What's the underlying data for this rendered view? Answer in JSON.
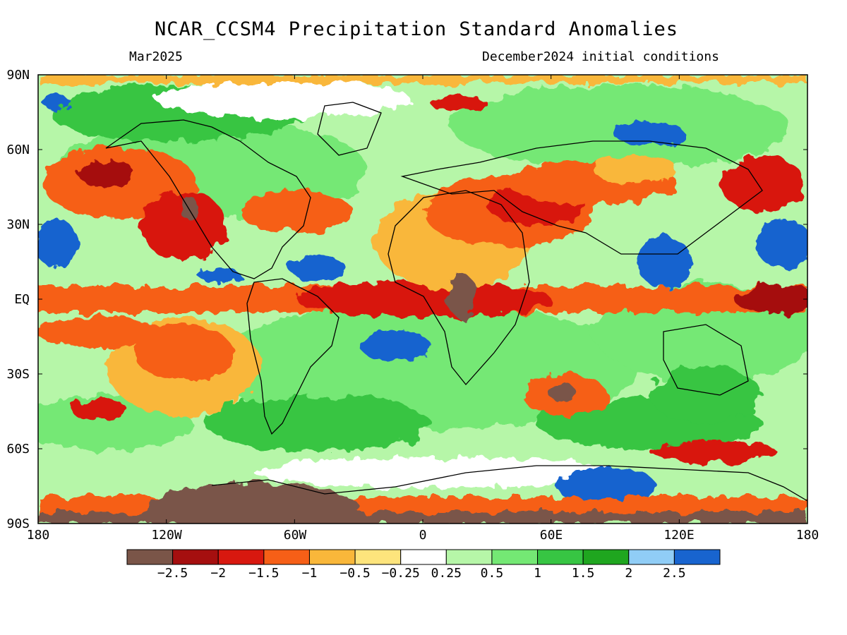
{
  "header": {
    "title": "NCAR_CCSM4 Precipitation Standard Anomalies",
    "valid_month": "Mar2025",
    "initial_conditions": "December2024 initial conditions"
  },
  "axes": {
    "lat_labels": [
      "90N",
      "60N",
      "30N",
      "EQ",
      "30S",
      "60S",
      "90S"
    ],
    "lat_values": [
      90,
      60,
      30,
      0,
      -30,
      -60,
      -90
    ],
    "lon_labels": [
      "180",
      "120W",
      "60W",
      "0",
      "60E",
      "120E",
      "180"
    ],
    "lon_values": [
      -180,
      -120,
      -60,
      0,
      60,
      120,
      180
    ]
  },
  "colorbar": {
    "colors": [
      "#7a5548",
      "#a50f0f",
      "#d8180f",
      "#f65f17",
      "#f9b73a",
      "#fde47c",
      "#ffffff",
      "#b6f6a8",
      "#74e874",
      "#37c543",
      "#1fa61f",
      "#90cdf6",
      "#1864cf"
    ],
    "labels": [
      "−2.5",
      "−2",
      "−1.5",
      "−1",
      "−0.5",
      "−0.25",
      "0.25",
      "0.5",
      "1",
      "1.5",
      "2",
      "2.5"
    ]
  }
}
